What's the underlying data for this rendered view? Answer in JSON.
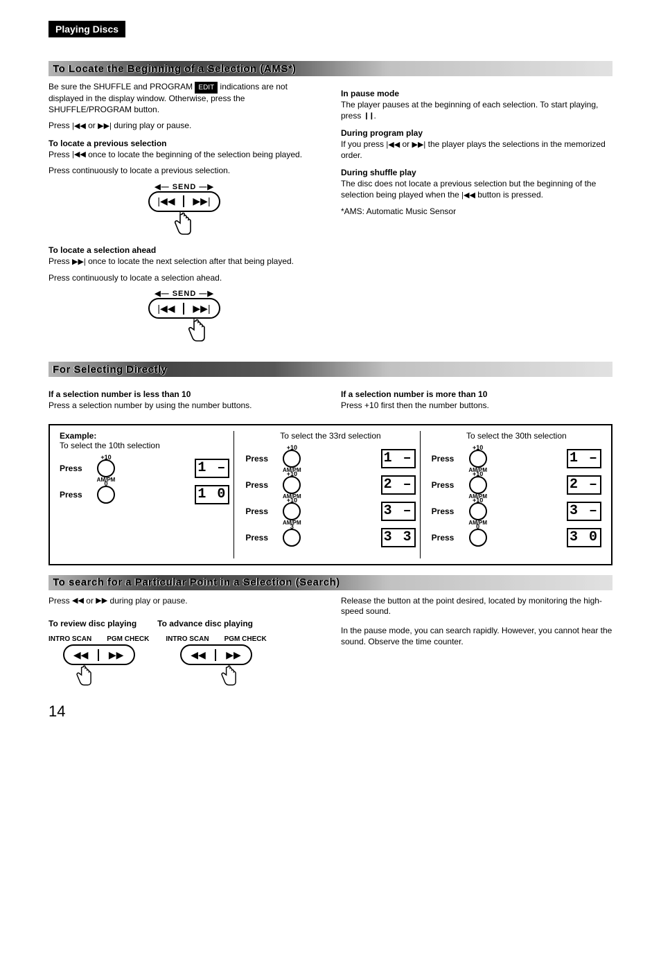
{
  "header": "Playing Discs",
  "section1_title": "To Locate the Beginning of a Selection (AMS*)",
  "section2_title": "For Selecting Directly",
  "section3_title": "To search for a Particular Point in a Selection (Search)",
  "edit_label": "EDIT",
  "left": {
    "p1a": "Be sure the SHUFFLE and PROGRAM ",
    "p1b": " indications are not displayed in the display window. Otherwise, press the SHUFFLE/PROGRAM button.",
    "p2a": "Press ",
    "p2mid": " or ",
    "p2b": " during play or pause.",
    "loc_prev_h": "To locate a previous selection",
    "loc_prev_1a": "Press ",
    "loc_prev_1b": " once to locate the beginning of the selection being played.",
    "loc_prev_2": "Press continuously to locate a previous selection.",
    "send_label": "SEND",
    "loc_ahead_h": "To locate a selection ahead",
    "loc_ahead_1a": "Press ",
    "loc_ahead_1b": " once to locate the next selection after that being played.",
    "loc_ahead_2": "Press continuously to locate a selection ahead."
  },
  "right": {
    "pause_h": "In pause mode",
    "pause_a": "The player pauses at the beginning of each selection. To start playing, press ",
    "pause_b": ".",
    "prog_h": "During program play",
    "prog_a": "If you press ",
    "prog_mid": " or ",
    "prog_b": " the player plays the selections in the memorized order.",
    "shuf_h": "During shuffle play",
    "shuf_a": "The disc does not locate a previous selection but the beginning of the selection being played when the ",
    "shuf_b": " button is pressed.",
    "ams_note": "*AMS: Automatic Music Sensor"
  },
  "sel": {
    "less_h": "If a selection number is less than 10",
    "less_p": "Press a selection number by using the number buttons.",
    "more_h": "If a selection number is more than 10",
    "more_p": "Press +10 first then the number buttons."
  },
  "example": {
    "header": "Example:",
    "col1": {
      "title": "To select the 10th selection",
      "rows": [
        {
          "press": "Press",
          "super": "+10",
          "sub": "AM/PM",
          "disp": "1 –",
          "prefix": true
        },
        {
          "press": "Press",
          "super": "0",
          "sub": "",
          "disp": "1 0",
          "prefix": true
        }
      ]
    },
    "col2": {
      "title": "To select the 33rd selection",
      "rows": [
        {
          "press": "Press",
          "super": "+10",
          "sub": "AM/PM",
          "disp": "1 –",
          "prefix": true
        },
        {
          "press": "Press",
          "super": "+10",
          "sub": "AM/PM",
          "disp": "2 –",
          "prefix": false
        },
        {
          "press": "Press",
          "super": "+10",
          "sub": "AM/PM",
          "disp": "3 –",
          "prefix": false
        },
        {
          "press": "Press",
          "super": "3",
          "sub": "",
          "disp": "3 3",
          "prefix": false
        }
      ]
    },
    "col3": {
      "title": "To select the 30th selection",
      "rows": [
        {
          "press": "Press",
          "super": "+10",
          "sub": "AM/PM",
          "disp": "1 –",
          "prefix": true
        },
        {
          "press": "Press",
          "super": "+10",
          "sub": "AM/PM",
          "disp": "2 –",
          "prefix": false
        },
        {
          "press": "Press",
          "super": "+10",
          "sub": "AM/PM",
          "disp": "3 –",
          "prefix": false
        },
        {
          "press": "Press",
          "super": "0",
          "sub": "",
          "disp": "3 0",
          "prefix": false
        }
      ]
    }
  },
  "search": {
    "p1a": "Press ",
    "p1mid": " or ",
    "p1b": " during play or pause.",
    "review_h": "To review disc playing",
    "advance_h": "To advance disc playing",
    "intro": "INTRO SCAN",
    "pgm": "PGM CHECK",
    "r1": "Release the button at the point desired, located by monitoring the high-speed sound.",
    "r2": "In the pause mode, you can search rapidly. However, you cannot hear the sound. Observe the time counter."
  },
  "page_number": "14"
}
